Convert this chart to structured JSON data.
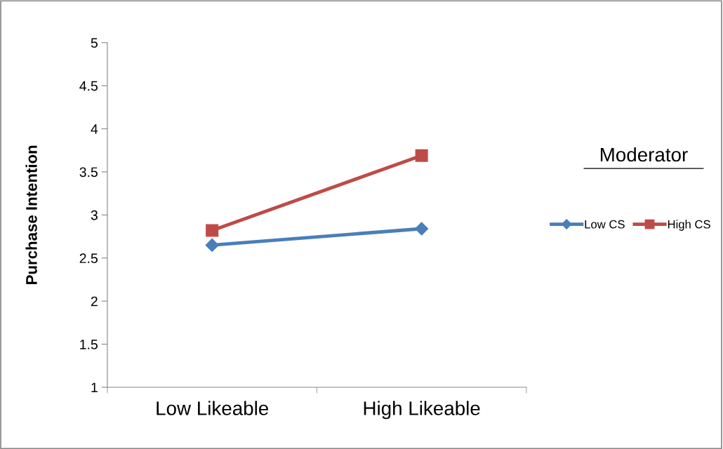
{
  "chart_data": {
    "type": "line",
    "ylabel": "Purchase Intention",
    "legend_title": "Moderator",
    "categories": [
      "Low Likeable",
      "High Likeable"
    ],
    "series": [
      {
        "name": "Low CS",
        "color": "#4a7ebb",
        "values": [
          2.65,
          2.84
        ],
        "marker": "diamond"
      },
      {
        "name": "High CS",
        "color": "#be4b48",
        "values": [
          2.82,
          3.69
        ],
        "marker": "square"
      }
    ],
    "ylim": [
      1,
      5
    ],
    "yticks": [
      1,
      1.5,
      2,
      2.5,
      3,
      3.5,
      4,
      4.5,
      5
    ],
    "grid": false,
    "legend": "right",
    "line_style": "solid"
  }
}
